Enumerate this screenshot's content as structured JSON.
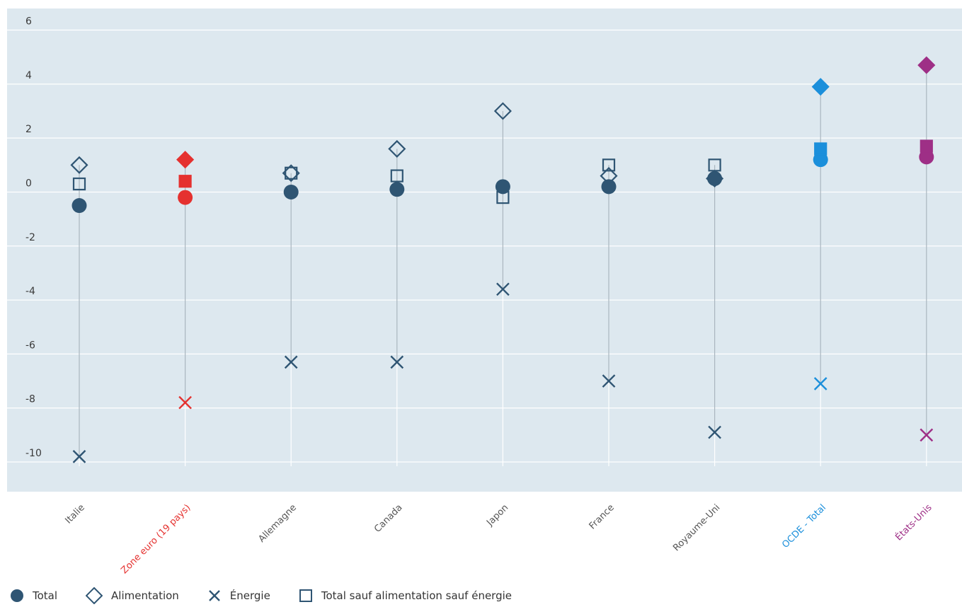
{
  "chart_data": {
    "type": "scatter",
    "categories": [
      "Italie",
      "Zone euro (19 pays)",
      "Allemagne",
      "Canada",
      "Japon",
      "France",
      "Royaume-Uni",
      "OCDE - Total",
      "États-Unis"
    ],
    "category_colors": [
      "#2f5573",
      "#e5312f",
      "#2f5573",
      "#2f5573",
      "#2f5573",
      "#2f5573",
      "#2f5573",
      "#1b8fdb",
      "#9e2f86"
    ],
    "label_colors": [
      "#555555",
      "#e5312f",
      "#555555",
      "#555555",
      "#555555",
      "#555555",
      "#555555",
      "#1b8fdb",
      "#9e2f86"
    ],
    "series": [
      {
        "name": "Total",
        "marker": "circle",
        "values": [
          -0.5,
          -0.2,
          0.0,
          0.1,
          0.2,
          0.2,
          0.5,
          1.2,
          1.3
        ]
      },
      {
        "name": "Alimentation",
        "marker": "diamond-open",
        "values": [
          1.0,
          1.2,
          0.7,
          1.6,
          3.0,
          0.6,
          0.5,
          3.9,
          4.7
        ]
      },
      {
        "name": "Énergie",
        "marker": "x",
        "values": [
          -9.8,
          -7.8,
          -6.3,
          -6.3,
          -3.6,
          -7.0,
          -8.9,
          -7.1,
          -9.0
        ]
      },
      {
        "name": "Total sauf alimentation sauf énergie",
        "marker": "square-open",
        "values": [
          0.3,
          0.4,
          0.7,
          0.6,
          -0.2,
          1.0,
          1.0,
          1.6,
          1.7
        ]
      }
    ],
    "yticks": [
      6,
      4,
      2,
      0,
      -2,
      -4,
      -6,
      -8,
      -10
    ],
    "ylim": [
      -11.1,
      6.8
    ],
    "grid": true,
    "legend_position": "bottom-left",
    "colors": {
      "plot_bg": "#dde8ef",
      "grid": "#ffffff",
      "range_line": "#aab6bf"
    }
  },
  "legend": [
    {
      "label": "Total",
      "icon": "circle-icon"
    },
    {
      "label": "Alimentation",
      "icon": "diamond-outline-icon"
    },
    {
      "label": "Énergie",
      "icon": "x-icon"
    },
    {
      "label": "Total sauf alimentation sauf énergie",
      "icon": "square-outline-icon"
    }
  ]
}
